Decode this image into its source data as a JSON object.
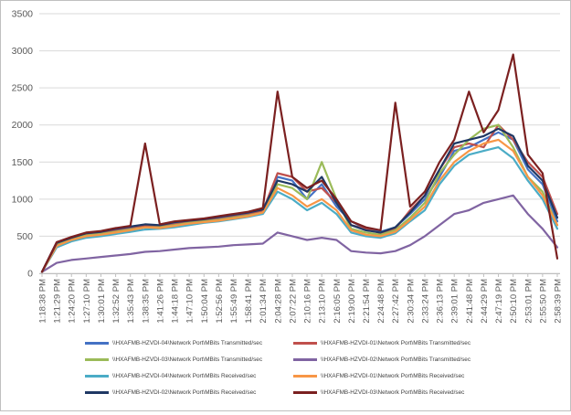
{
  "chart_data": {
    "type": "line",
    "title": "",
    "xlabel": "",
    "ylabel": "",
    "ylim": [
      0,
      3500
    ],
    "yticks": [
      "0",
      "500",
      "1000",
      "1500",
      "2000",
      "2500",
      "3000",
      "3500"
    ],
    "grid": "horizontal",
    "legend_position": "bottom",
    "x_tick_labels": [
      "1:18:38 PM",
      "1:21:29 PM",
      "1:24:20 PM",
      "1:27:10 PM",
      "1:30:01 PM",
      "1:32:52 PM",
      "1:35:43 PM",
      "1:38:35 PM",
      "1:41:26 PM",
      "1:44:18 PM",
      "1:47:10 PM",
      "1:50:04 PM",
      "1:52:56 PM",
      "1:55:49 PM",
      "1:58:41 PM",
      "2:01:34 PM",
      "2:04:28 PM",
      "2:07:22 PM",
      "2:10:16 PM",
      "2:13:10 PM",
      "2:16:05 PM",
      "2:19:00 PM",
      "2:21:54 PM",
      "2:24:48 PM",
      "2:27:42 PM",
      "2:30:34 PM",
      "2:33:24 PM",
      "2:36:13 PM",
      "2:39:01 PM",
      "2:41:48 PM",
      "2:44:29 PM",
      "2:47:19 PM",
      "2:50:10 PM",
      "2:53:01 PM",
      "2:55:50 PM",
      "2:58:39 PM"
    ],
    "x": [
      1,
      2,
      3,
      4,
      5,
      6,
      7,
      8,
      9,
      10,
      11,
      12,
      13,
      14,
      15,
      16,
      17,
      18,
      19,
      20,
      21,
      22,
      23,
      24,
      25,
      26,
      27,
      28,
      29,
      30,
      31,
      32,
      33,
      34,
      35,
      36
    ],
    "series": [
      {
        "name": "\\\\HXAFMB-HZVDI-04\\Network Port\\MBits Transmitted/sec",
        "color": "#4472c4",
        "values": [
          20,
          420,
          480,
          540,
          560,
          590,
          620,
          650,
          640,
          680,
          700,
          720,
          740,
          780,
          800,
          850,
          1300,
          1250,
          1000,
          1200,
          900,
          700,
          600,
          560,
          620,
          800,
          1000,
          1300,
          1650,
          1700,
          1800,
          1900,
          1800,
          1400,
          1200,
          700
        ]
      },
      {
        "name": "\\\\HXAFMB-HZVDI-01\\Network Port\\MBits Transmitted/sec",
        "color": "#c0504d",
        "values": [
          20,
          380,
          460,
          520,
          540,
          570,
          600,
          640,
          630,
          660,
          690,
          710,
          730,
          760,
          790,
          840,
          1350,
          1300,
          1100,
          1150,
          950,
          650,
          600,
          540,
          600,
          850,
          1050,
          1400,
          1700,
          1750,
          1700,
          2000,
          1800,
          1500,
          1300,
          800
        ]
      },
      {
        "name": "\\\\HXAFMB-HZVDI-03\\Network Port\\MBits Transmitted/sec",
        "color": "#9bbb59",
        "values": [
          20,
          400,
          470,
          510,
          530,
          560,
          590,
          620,
          620,
          650,
          680,
          700,
          720,
          750,
          780,
          820,
          1200,
          1150,
          1000,
          1500,
          1000,
          600,
          550,
          520,
          580,
          750,
          950,
          1350,
          1600,
          1800,
          1950,
          2000,
          1700,
          1300,
          1100,
          650
        ]
      },
      {
        "name": "\\\\HXAFMB-HZVDI-02\\Network Port\\MBits Transmitted/sec",
        "color": "#8064a2",
        "values": [
          20,
          140,
          180,
          200,
          220,
          240,
          260,
          290,
          300,
          320,
          340,
          350,
          360,
          380,
          390,
          400,
          550,
          500,
          450,
          480,
          450,
          300,
          280,
          270,
          300,
          380,
          500,
          650,
          800,
          850,
          950,
          1000,
          1050,
          800,
          600,
          350
        ]
      },
      {
        "name": "\\\\HXAFMB-HZVDI-04\\Network Port\\MBits Received/sec",
        "color": "#4bacc6",
        "values": [
          20,
          350,
          430,
          480,
          500,
          530,
          560,
          590,
          600,
          620,
          650,
          680,
          700,
          730,
          760,
          800,
          1100,
          1000,
          850,
          950,
          800,
          550,
          500,
          480,
          540,
          700,
          850,
          1200,
          1450,
          1600,
          1650,
          1700,
          1550,
          1250,
          1000,
          600
        ]
      },
      {
        "name": "\\\\HXAFMB-HZVDI-01\\Network Port\\MBits Received/sec",
        "color": "#f79646",
        "values": [
          20,
          370,
          450,
          500,
          520,
          550,
          580,
          620,
          610,
          640,
          670,
          690,
          710,
          740,
          770,
          820,
          1150,
          1050,
          900,
          1000,
          850,
          580,
          520,
          500,
          560,
          720,
          900,
          1250,
          1500,
          1650,
          1750,
          1800,
          1650,
          1300,
          1050,
          650
        ]
      },
      {
        "name": "\\\\HXAFMB-HZVDI-02\\Network Port\\MBits Received/sec",
        "color": "#1f3864",
        "values": [
          20,
          410,
          480,
          540,
          560,
          600,
          630,
          660,
          650,
          690,
          710,
          730,
          760,
          790,
          820,
          860,
          1250,
          1200,
          1100,
          1300,
          950,
          650,
          580,
          550,
          620,
          820,
          1050,
          1400,
          1750,
          1800,
          1850,
          1950,
          1850,
          1450,
          1250,
          750
        ]
      },
      {
        "name": "\\\\HXAFMB-HZVDI-03\\Network Port\\MBits Received/sec",
        "color": "#7b2020",
        "values": [
          20,
          420,
          490,
          550,
          570,
          610,
          640,
          1750,
          660,
          700,
          720,
          740,
          770,
          800,
          830,
          880,
          2450,
          1300,
          1150,
          1250,
          1000,
          700,
          620,
          580,
          2300,
          900,
          1100,
          1500,
          1800,
          2450,
          1900,
          2200,
          2950,
          1600,
          1350,
          200
        ]
      }
    ]
  }
}
